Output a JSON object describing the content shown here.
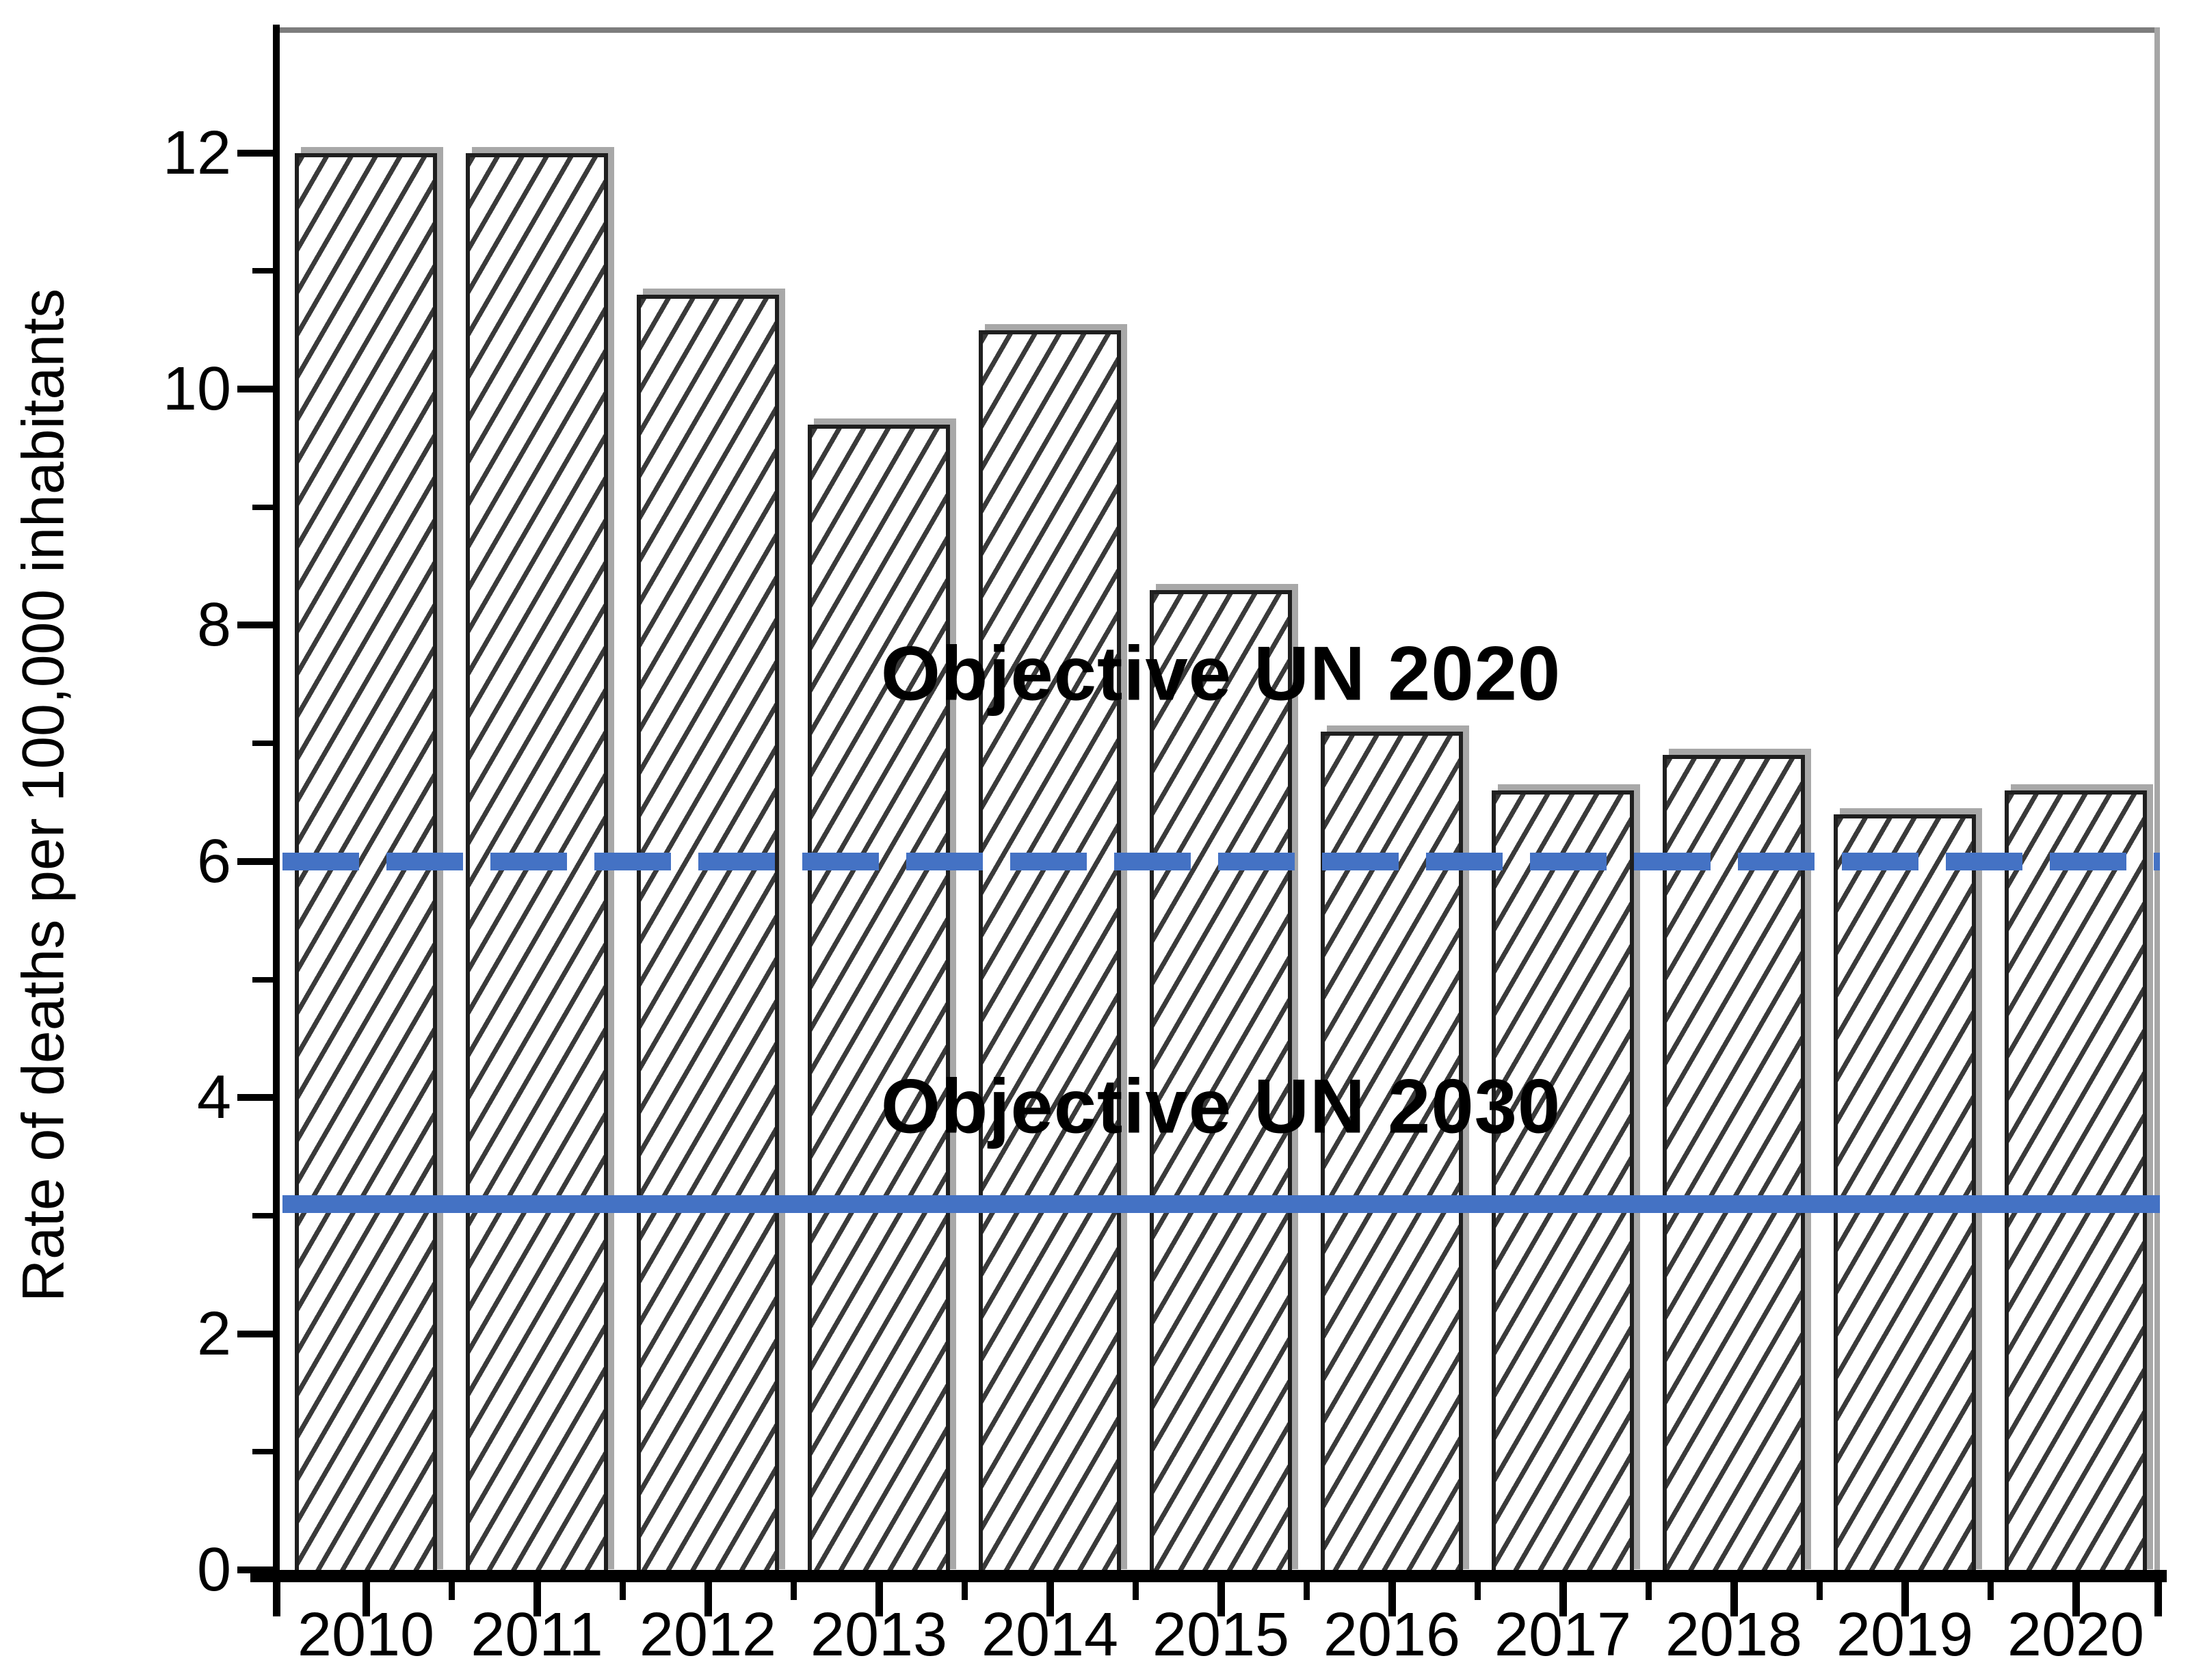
{
  "chart_data": {
    "type": "bar",
    "title": "",
    "xlabel": "",
    "ylabel": "Rate of deaths per 100,000 inhabitants",
    "categories": [
      "2010",
      "2011",
      "2012",
      "2013",
      "2014",
      "2015",
      "2016",
      "2017",
      "2018",
      "2019",
      "2020"
    ],
    "values": [
      12.0,
      12.0,
      10.8,
      9.7,
      10.5,
      8.3,
      7.1,
      6.6,
      6.9,
      6.4,
      6.6
    ],
    "ylim": [
      0,
      13.2
    ],
    "y_major_ticks": [
      0,
      2,
      4,
      6,
      8,
      10,
      12
    ],
    "y_major_tick_labels": [
      "0",
      "2",
      "4",
      "6",
      "8",
      "10",
      "12"
    ],
    "y_minor_ticks": [
      1,
      3,
      5,
      7,
      9,
      11
    ],
    "grid": false,
    "legend": "none",
    "bar_style": "white fill with dark diagonal hatch, black outline, gray shadow",
    "reference_lines": [
      {
        "label": "Objective UN 2020",
        "value": 6.0,
        "style": "dashed",
        "color": "#4472C4"
      },
      {
        "label": "Objective UN 2030",
        "value": 3.1,
        "style": "solid",
        "color": "#4472C4"
      }
    ]
  },
  "colors": {
    "background": "#ffffff",
    "axis": "#000000",
    "frame_top": "#7d7d7d",
    "frame_right": "#a6a6a6",
    "bar_border": "#1f1f1f",
    "bar_hatch": "#2f2f2f",
    "bar_shadow": "#a8a8a8",
    "objective_line_blue": "#4472C4",
    "text": "#000000"
  }
}
